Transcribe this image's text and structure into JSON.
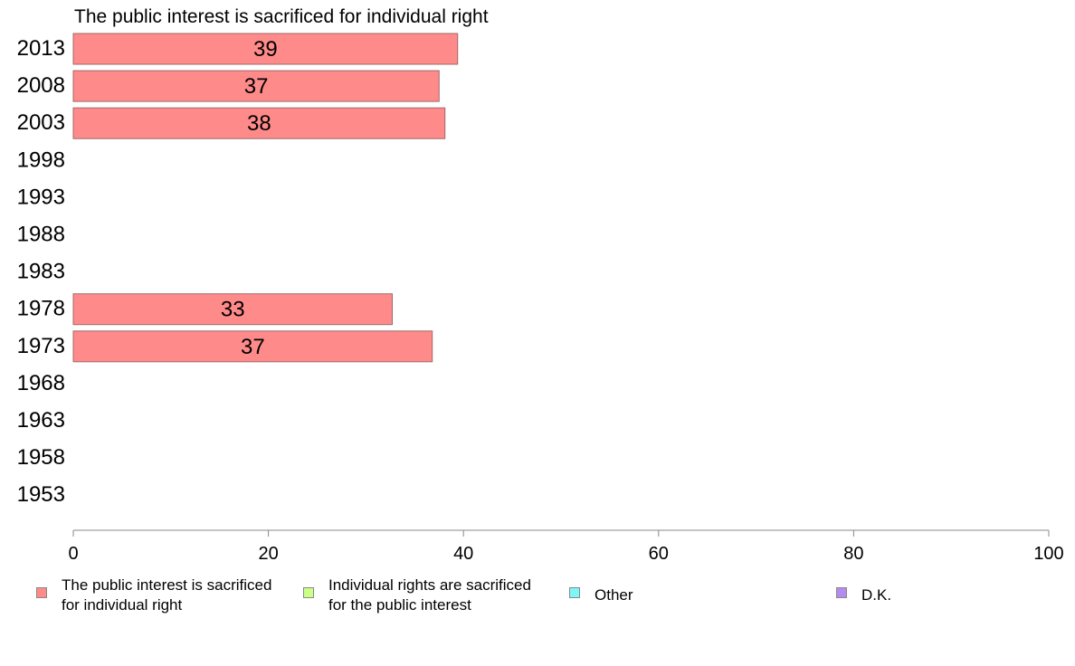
{
  "chart_data": {
    "type": "bar",
    "orientation": "horizontal",
    "title": "The public interest is sacrificed for individual right",
    "categories": [
      "2013",
      "2008",
      "2003",
      "1998",
      "1993",
      "1988",
      "1983",
      "1978",
      "1973",
      "1968",
      "1963",
      "1958",
      "1953"
    ],
    "series": [
      {
        "name": "The public interest is sacrificed for individual right",
        "color": "#ff8a8a",
        "values": [
          39.4,
          37.5,
          38.1,
          null,
          null,
          null,
          null,
          32.7,
          36.8,
          null,
          null,
          null,
          null
        ],
        "labels": [
          "39",
          "37",
          "38",
          null,
          null,
          null,
          null,
          "33",
          "37",
          null,
          null,
          null,
          null
        ]
      }
    ],
    "xlim": [
      0,
      100
    ],
    "xticks": [
      "0",
      "20",
      "40",
      "60",
      "80",
      "100"
    ],
    "grid": false,
    "legend_position": "bottom"
  },
  "legend": [
    {
      "label": "The public interest is sacrificed\nfor individual right",
      "color": "#ff8a8a"
    },
    {
      "label": "Individual rights are sacrificed\nfor the public interest",
      "color": "#ccff88"
    },
    {
      "label": "Other",
      "color": "#7ff5f5"
    },
    {
      "label": "D.K.",
      "color": "#b48cf0"
    }
  ]
}
